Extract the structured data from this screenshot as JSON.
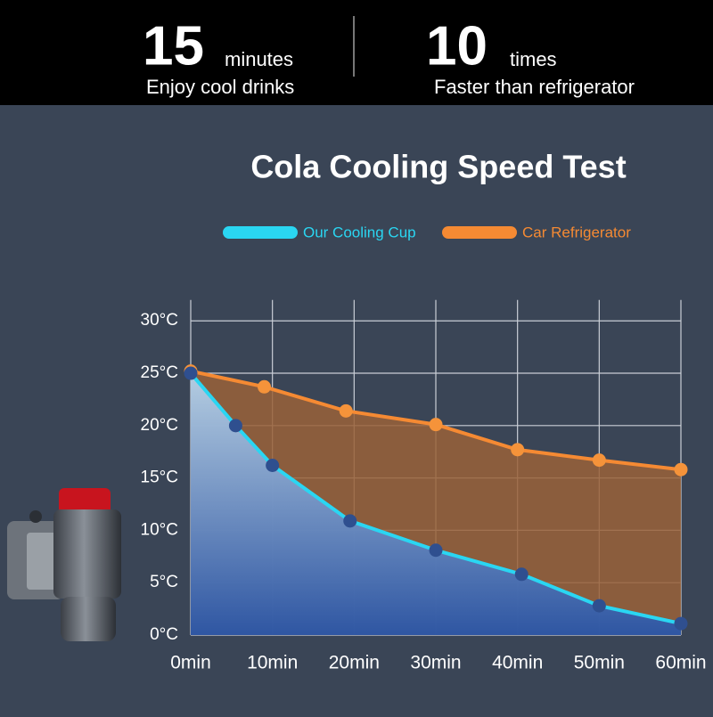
{
  "header": {
    "left": {
      "number": "15",
      "unit": "minutes",
      "caption": "Enjoy cool drinks"
    },
    "right": {
      "number": "10",
      "unit": "times",
      "caption": "Faster than refrigerator"
    }
  },
  "chart_data": {
    "type": "area-line",
    "title": "Cola Cooling Speed Test",
    "xlim": [
      0,
      60
    ],
    "xticks": [
      {
        "value": 0,
        "label": "0min"
      },
      {
        "value": 10,
        "label": "10min"
      },
      {
        "value": 20,
        "label": "20min"
      },
      {
        "value": 30,
        "label": "30min"
      },
      {
        "value": 40,
        "label": "40min"
      },
      {
        "value": 50,
        "label": "50min"
      },
      {
        "value": 60,
        "label": "60min"
      }
    ],
    "ylim": [
      0,
      32
    ],
    "yticks": [
      {
        "value": 0,
        "label": "0°C"
      },
      {
        "value": 5,
        "label": "5°C"
      },
      {
        "value": 10,
        "label": "10°C"
      },
      {
        "value": 15,
        "label": "15°C"
      },
      {
        "value": 20,
        "label": "20°C"
      },
      {
        "value": 25,
        "label": "25°C"
      },
      {
        "value": 30,
        "label": "30°C"
      }
    ],
    "grid": true,
    "series": [
      {
        "name": "Car Refrigerator",
        "color": "#f58a33",
        "area_color": "#9a6238",
        "x": [
          0,
          9,
          19,
          30,
          40,
          50,
          60
        ],
        "values": [
          25.2,
          23.7,
          21.4,
          20.1,
          17.7,
          16.7,
          15.8
        ]
      },
      {
        "name": "Our Cooling Cup",
        "color": "#2ad6f2",
        "area_color": "#3b6fb8",
        "x": [
          0,
          5.5,
          10,
          19.5,
          30,
          40.5,
          50,
          60
        ],
        "values": [
          25,
          20,
          16.2,
          10.9,
          8.1,
          5.8,
          2.8,
          1.1
        ]
      }
    ]
  }
}
